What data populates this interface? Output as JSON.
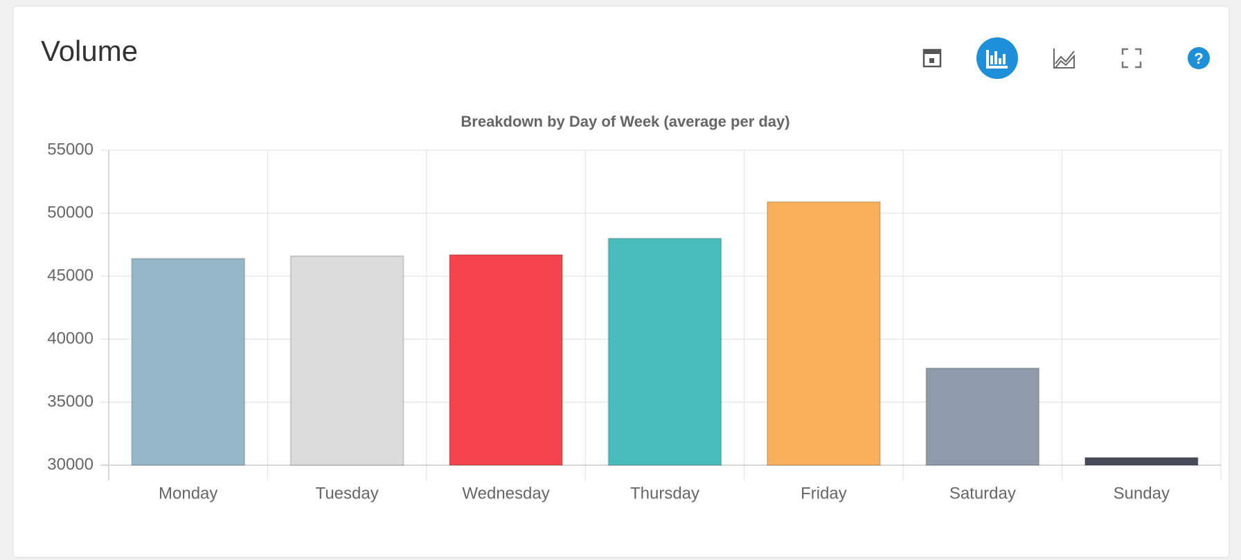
{
  "panel_title": "Volume",
  "chart_data": {
    "type": "bar",
    "title": "Breakdown by Day of Week (average per day)",
    "categories": [
      "Monday",
      "Tuesday",
      "Wednesday",
      "Thursday",
      "Friday",
      "Saturday",
      "Sunday"
    ],
    "values": [
      46400,
      46600,
      46700,
      48000,
      50900,
      37700,
      30600
    ],
    "colors": [
      "#94b6c8",
      "#dcdcdc",
      "#f5444b",
      "#49bdbb",
      "#fab05b",
      "#8f9bab",
      "#474b59"
    ],
    "ylim": [
      30000,
      55000
    ],
    "yticks": [
      30000,
      35000,
      40000,
      45000,
      50000,
      55000
    ],
    "grid": true
  }
}
